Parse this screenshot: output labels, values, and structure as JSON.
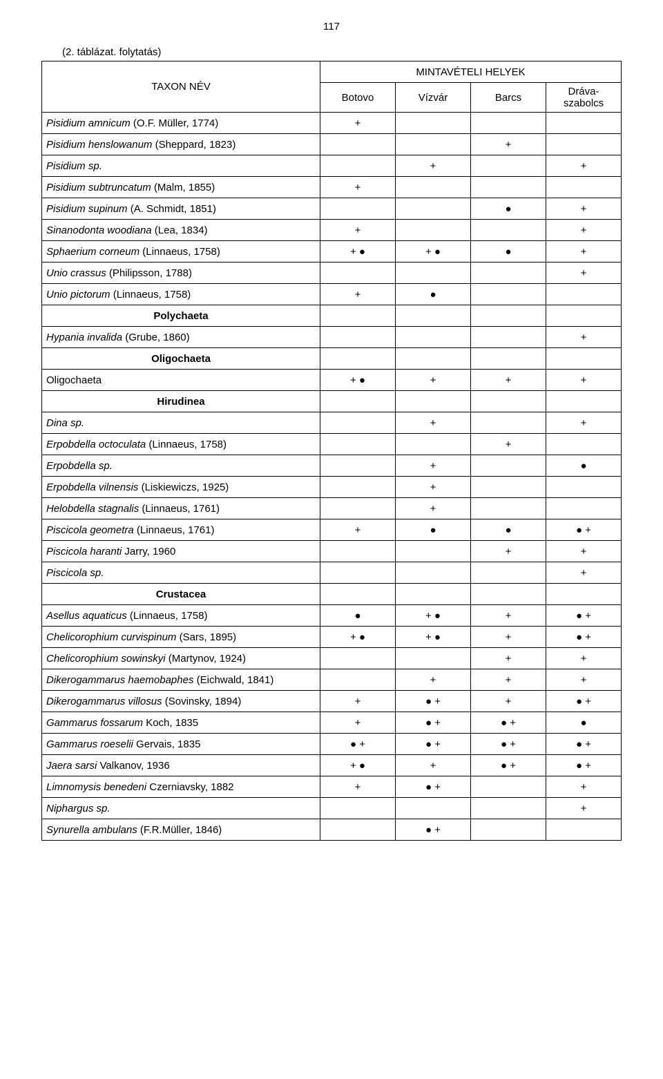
{
  "page_number": "117",
  "caption_cont": "(2. táblázat. folytatás)",
  "header": {
    "taxon": "TAXON NÉV",
    "sites_group": "MINTAVÉTELI HELYEK",
    "sites": [
      "Botovo",
      "Vízvár",
      "Barcs",
      "Dráva-\nszabolcs"
    ]
  },
  "rows": [
    {
      "name": "Pisidium amnicum (O.F. Müller, 1774)",
      "italic": true,
      "cells": [
        "+",
        "",
        "",
        ""
      ]
    },
    {
      "name": "Pisidium henslowanum (Sheppard, 1823)",
      "italic": true,
      "cells": [
        "",
        "",
        "+",
        ""
      ]
    },
    {
      "name": "Pisidium sp.",
      "italic": true,
      "cells": [
        "",
        "+",
        "",
        "+"
      ]
    },
    {
      "name": "Pisidium subtruncatum (Malm, 1855)",
      "italic": true,
      "cells": [
        "+",
        "",
        "",
        ""
      ]
    },
    {
      "name": "Pisidium supinum (A. Schmidt, 1851)",
      "italic": true,
      "cells": [
        "",
        "",
        "●",
        "+"
      ]
    },
    {
      "name": "Sinanodonta woodiana (Lea, 1834)",
      "italic": true,
      "cells": [
        "+",
        "",
        "",
        "+"
      ]
    },
    {
      "name": "Sphaerium corneum (Linnaeus, 1758)",
      "italic": true,
      "cells": [
        "+ ●",
        "+ ●",
        "●",
        "+"
      ]
    },
    {
      "name": "Unio crassus (Philipsson, 1788)",
      "italic": true,
      "cells": [
        "",
        "",
        "",
        "+"
      ]
    },
    {
      "name": "Unio pictorum (Linnaeus, 1758)",
      "italic": true,
      "cells": [
        "+",
        "●",
        "",
        ""
      ]
    },
    {
      "name": "Polychaeta",
      "group": true
    },
    {
      "name": "Hypania invalida (Grube, 1860)",
      "italic": true,
      "cells": [
        "",
        "",
        "",
        "+"
      ]
    },
    {
      "name": "Oligochaeta",
      "group": true
    },
    {
      "name": "Oligochaeta",
      "italic": false,
      "cells": [
        "+ ●",
        "+",
        "+",
        "+"
      ]
    },
    {
      "name": "Hirudinea",
      "group": true
    },
    {
      "name": "Dina sp.",
      "italic": true,
      "cells": [
        "",
        "+",
        "",
        "+"
      ]
    },
    {
      "name": "Erpobdella octoculata (Linnaeus, 1758)",
      "italic": true,
      "cells": [
        "",
        "",
        "+",
        ""
      ]
    },
    {
      "name": "Erpobdella sp.",
      "italic": true,
      "cells": [
        "",
        "+",
        "",
        "●"
      ]
    },
    {
      "name": "Erpobdella vilnensis (Liskiewiczs, 1925)",
      "italic": true,
      "cells": [
        "",
        "+",
        "",
        ""
      ]
    },
    {
      "name": "Helobdella stagnalis (Linnaeus, 1761)",
      "italic": true,
      "cells": [
        "",
        "+",
        "",
        ""
      ]
    },
    {
      "name": "Piscicola geometra (Linnaeus, 1761)",
      "italic": true,
      "cells": [
        "+",
        "●",
        "●",
        "● +"
      ]
    },
    {
      "name": "Piscicola haranti Jarry, 1960",
      "italic": true,
      "cells": [
        "",
        "",
        "+",
        "+"
      ]
    },
    {
      "name": "Piscicola sp.",
      "italic": true,
      "cells": [
        "",
        "",
        "",
        "+"
      ]
    },
    {
      "name": "Crustacea",
      "group": true
    },
    {
      "name": "Asellus aquaticus (Linnaeus, 1758)",
      "italic": true,
      "cells": [
        "●",
        "+ ●",
        "+",
        "● +"
      ]
    },
    {
      "name": "Chelicorophium curvispinum (Sars, 1895)",
      "italic": true,
      "cells": [
        "+ ●",
        "+ ●",
        "+",
        "● +"
      ]
    },
    {
      "name": "Chelicorophium sowinskyi (Martynov, 1924)",
      "italic": true,
      "cells": [
        "",
        "",
        "+",
        "+"
      ]
    },
    {
      "name": "Dikerogammarus haemobaphes (Eichwald, 1841)",
      "italic": true,
      "cells": [
        "",
        "+",
        "+",
        "+"
      ]
    },
    {
      "name": "Dikerogammarus villosus (Sovinsky, 1894)",
      "italic": true,
      "cells": [
        "+",
        "● +",
        "+",
        "● +"
      ]
    },
    {
      "name": "Gammarus fossarum Koch, 1835",
      "italic": true,
      "cells": [
        "+",
        "● +",
        "● +",
        "●"
      ]
    },
    {
      "name": "Gammarus roeselii Gervais, 1835",
      "italic": true,
      "cells": [
        "● +",
        "● +",
        "● +",
        "● +"
      ]
    },
    {
      "name": "Jaera sarsi Valkanov, 1936",
      "italic": true,
      "cells": [
        "+ ●",
        "+",
        "● +",
        "● +"
      ]
    },
    {
      "name": "Limnomysis benedeni Czerniavsky, 1882",
      "italic": true,
      "cells": [
        "+",
        "● +",
        "",
        "+"
      ]
    },
    {
      "name": "Niphargus sp.",
      "italic": true,
      "cells": [
        "",
        "",
        "",
        "+"
      ]
    },
    {
      "name": "Synurella ambulans (F.R.Müller, 1846)",
      "italic": true,
      "cells": [
        "",
        "● +",
        "",
        ""
      ]
    }
  ]
}
